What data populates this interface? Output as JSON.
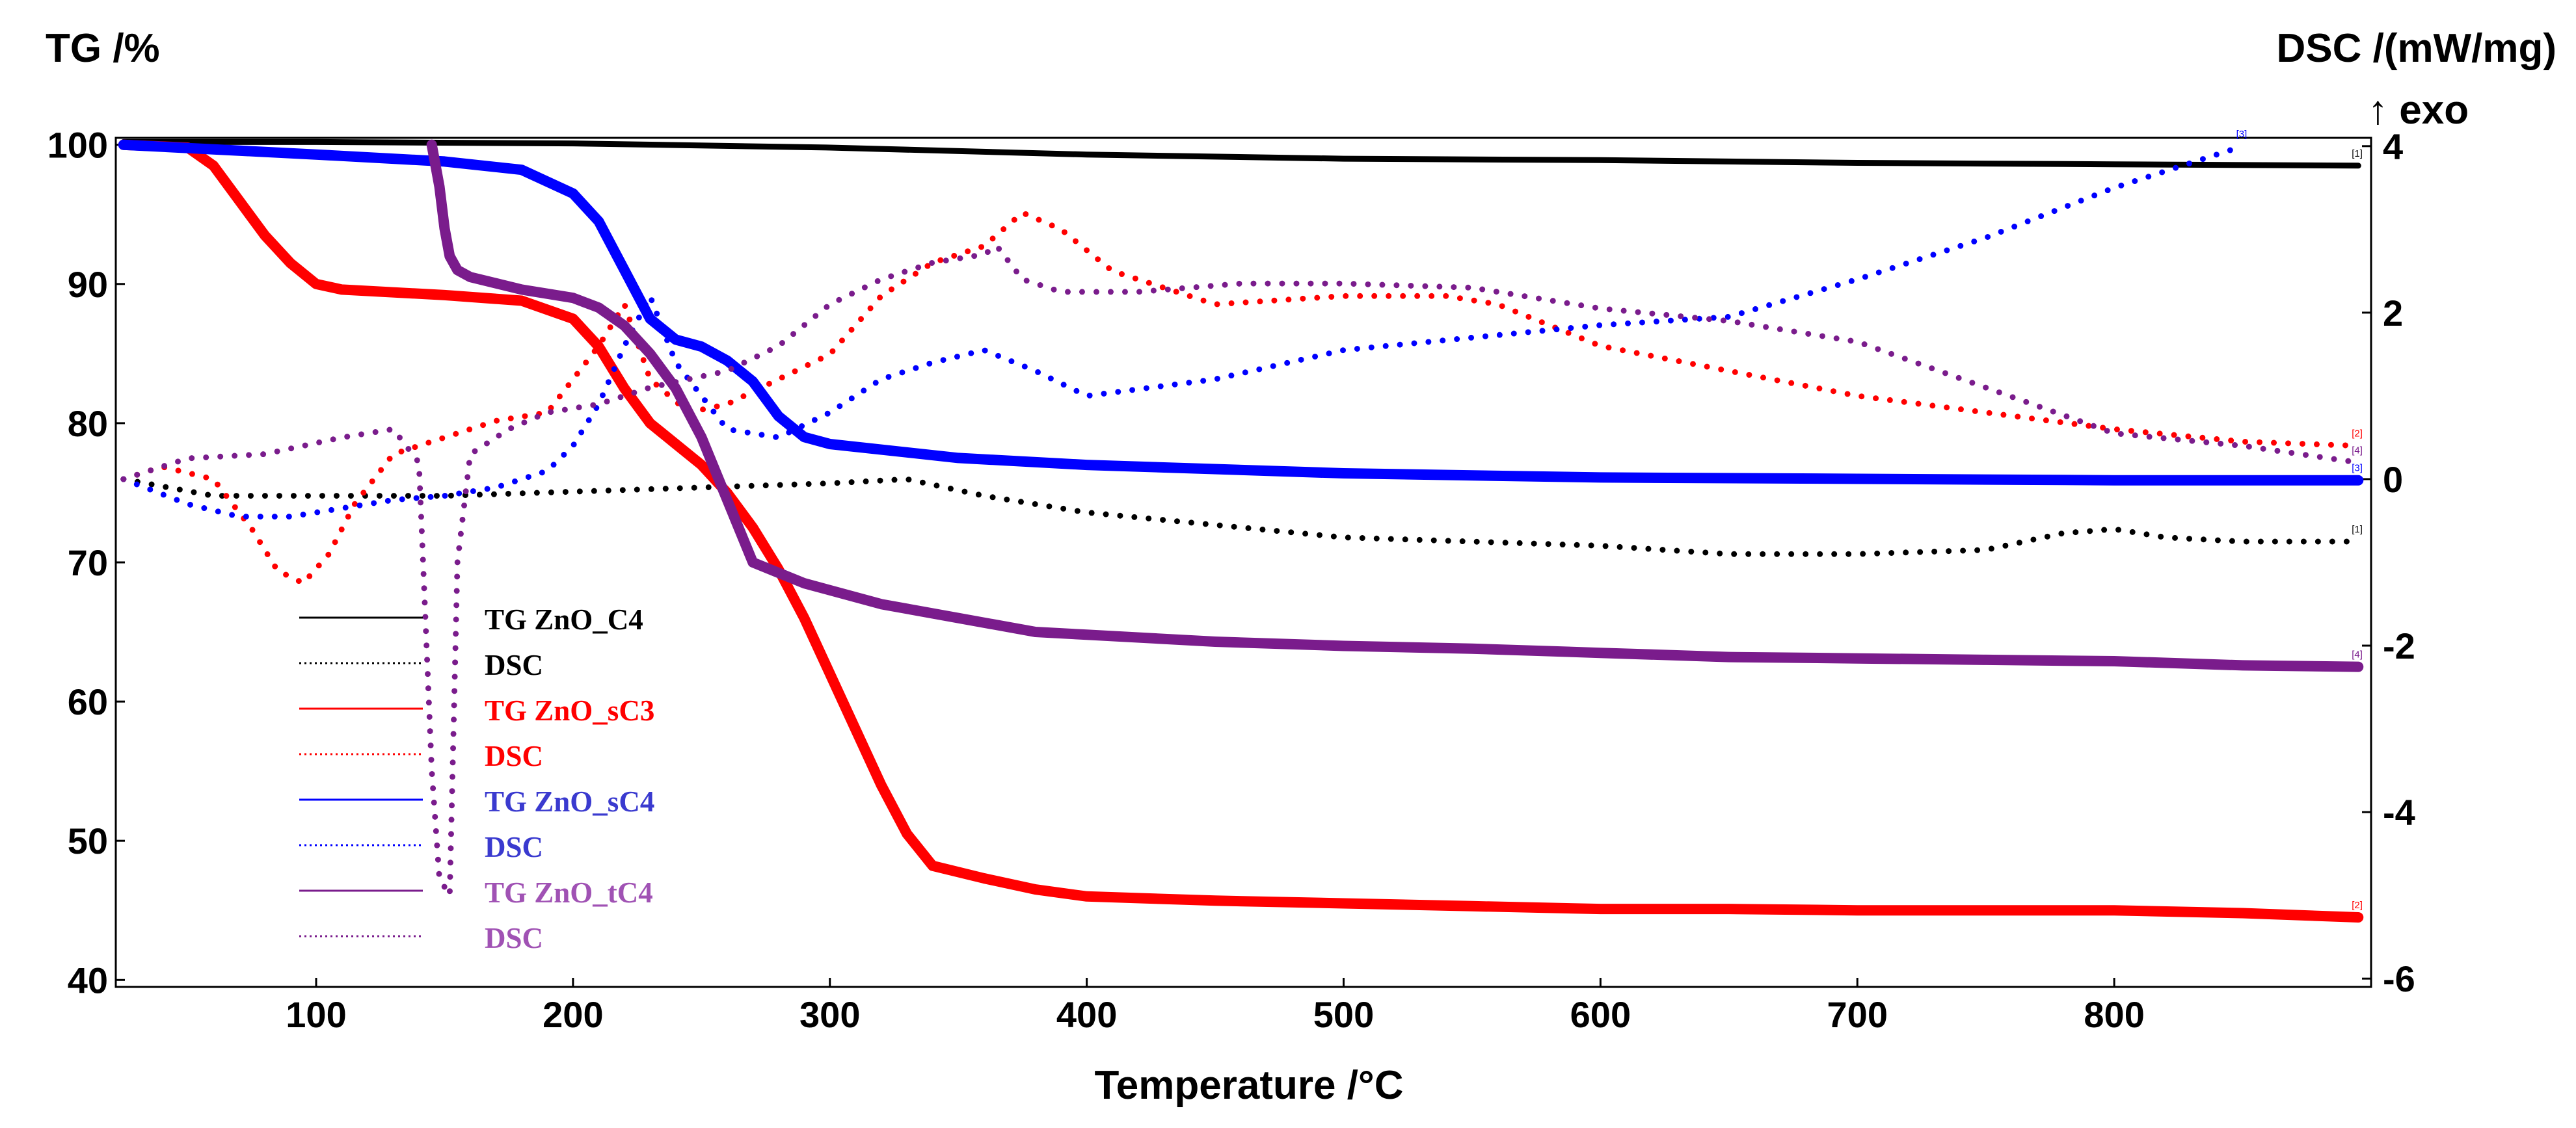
{
  "chart_data": {
    "type": "line",
    "xlabel": "Temperature /°C",
    "ylabel_left": "TG /%",
    "ylabel_right": "DSC /(mW/mg)",
    "right_axis_note": "↑ exo",
    "xlim": [
      22,
      900
    ],
    "ylim_left": [
      39.5,
      100.5
    ],
    "ylim_right": [
      -6.1,
      4.1
    ],
    "x_ticks": [
      100,
      200,
      300,
      400,
      500,
      600,
      700,
      800
    ],
    "y_ticks_left": [
      40,
      50,
      60,
      70,
      80,
      90,
      100
    ],
    "y_ticks_right": [
      -6,
      -4,
      -2,
      0,
      2,
      4
    ],
    "grid": false,
    "legend_position": "lower-left",
    "colors": {
      "C4": "#000000",
      "sC3": "#ff0000",
      "sC4": "#0000ff",
      "tC4": "#7a1c8c",
      "legend_tC4_text": "#a052b4",
      "legend_sC4_text": "#3a3acf"
    },
    "series": [
      {
        "name": "TG ZnO_C4",
        "axis": "left",
        "style": "solid",
        "color_key": "C4",
        "tag": "[1]",
        "x": [
          25,
          100,
          200,
          300,
          400,
          500,
          600,
          700,
          800,
          895
        ],
        "y": [
          100.2,
          100.2,
          100.1,
          99.8,
          99.3,
          99.0,
          98.9,
          98.7,
          98.6,
          98.5
        ]
      },
      {
        "name": "DSC",
        "axis": "right",
        "style": "dotted",
        "color_key": "C4",
        "tag": "[1]",
        "x": [
          25,
          60,
          100,
          150,
          200,
          250,
          300,
          330,
          360,
          400,
          450,
          500,
          550,
          600,
          650,
          700,
          750,
          780,
          800,
          820,
          850,
          880,
          895
        ],
        "y": [
          0.0,
          -0.2,
          -0.2,
          -0.2,
          -0.15,
          -0.1,
          -0.05,
          0.0,
          -0.2,
          -0.4,
          -0.55,
          -0.7,
          -0.75,
          -0.8,
          -0.9,
          -0.9,
          -0.85,
          -0.65,
          -0.6,
          -0.7,
          -0.75,
          -0.75,
          -0.75
        ]
      },
      {
        "name": "TG ZnO_sC3",
        "axis": "left",
        "style": "solid",
        "color_key": "sC3",
        "tag": "[2]",
        "x": [
          25,
          50,
          60,
          70,
          80,
          90,
          100,
          110,
          150,
          180,
          200,
          210,
          220,
          230,
          240,
          250,
          260,
          270,
          280,
          290,
          300,
          310,
          320,
          330,
          340,
          360,
          380,
          400,
          450,
          500,
          550,
          600,
          650,
          700,
          750,
          800,
          850,
          895
        ],
        "y": [
          100.0,
          99.8,
          98.5,
          96.0,
          93.5,
          91.5,
          90.0,
          89.6,
          89.2,
          88.8,
          87.5,
          85.5,
          82.5,
          80.0,
          78.5,
          77.0,
          75.0,
          72.5,
          69.5,
          66.0,
          62.0,
          58.0,
          54.0,
          50.5,
          48.2,
          47.3,
          46.5,
          46.0,
          45.7,
          45.5,
          45.3,
          45.1,
          45.1,
          45.0,
          45.0,
          45.0,
          44.8,
          44.5
        ]
      },
      {
        "name": "DSC",
        "axis": "right",
        "style": "dotted",
        "color_key": "sC3",
        "tag": "[2]",
        "x": [
          25,
          40,
          60,
          75,
          85,
          95,
          105,
          115,
          130,
          150,
          170,
          190,
          210,
          220,
          230,
          245,
          260,
          280,
          300,
          320,
          340,
          360,
          375,
          390,
          410,
          450,
          500,
          540,
          560,
          600,
          650,
          700,
          750,
          800,
          850,
          895
        ],
        "y": [
          0.0,
          0.15,
          0.0,
          -0.6,
          -1.1,
          -1.25,
          -0.9,
          -0.3,
          0.3,
          0.5,
          0.7,
          0.8,
          1.6,
          2.1,
          1.2,
          0.8,
          0.9,
          1.2,
          1.5,
          2.2,
          2.6,
          2.8,
          3.2,
          3.0,
          2.5,
          2.1,
          2.2,
          2.2,
          2.1,
          1.6,
          1.3,
          1.0,
          0.8,
          0.6,
          0.45,
          0.4
        ]
      },
      {
        "name": "TG ZnO_sC4",
        "axis": "left",
        "style": "solid",
        "color_key": "sC4",
        "tag": "[3]",
        "x": [
          25,
          100,
          150,
          180,
          200,
          210,
          220,
          230,
          240,
          250,
          260,
          270,
          280,
          290,
          300,
          350,
          400,
          500,
          600,
          700,
          800,
          895
        ],
        "y": [
          100.0,
          99.3,
          98.8,
          98.2,
          96.5,
          94.5,
          91.0,
          87.5,
          86.0,
          85.5,
          84.5,
          83.0,
          80.5,
          79.0,
          78.5,
          77.5,
          77.0,
          76.4,
          76.1,
          76.0,
          75.9,
          75.9
        ]
      },
      {
        "name": "DSC",
        "axis": "right",
        "style": "dotted",
        "color_key": "sC4",
        "tag": "[3]",
        "x": [
          25,
          50,
          70,
          90,
          110,
          130,
          150,
          170,
          190,
          200,
          210,
          220,
          230,
          240,
          260,
          280,
          300,
          320,
          340,
          360,
          380,
          400,
          450,
          500,
          550,
          600,
          650,
          700,
          750,
          800,
          850
        ],
        "y": [
          0.0,
          -0.3,
          -0.45,
          -0.45,
          -0.35,
          -0.25,
          -0.2,
          -0.1,
          0.1,
          0.4,
          0.9,
          1.6,
          2.2,
          1.4,
          0.6,
          0.5,
          0.8,
          1.2,
          1.4,
          1.55,
          1.3,
          1.0,
          1.2,
          1.55,
          1.7,
          1.85,
          1.95,
          2.4,
          2.9,
          3.5,
          4.0
        ]
      },
      {
        "name": "TG ZnO_tC4",
        "axis": "left",
        "style": "solid",
        "color_key": "tC4",
        "tag": "[4]",
        "x": [
          145,
          148,
          150,
          152,
          155,
          160,
          180,
          200,
          210,
          220,
          230,
          240,
          250,
          260,
          270,
          290,
          320,
          350,
          380,
          400,
          450,
          500,
          550,
          600,
          650,
          700,
          750,
          800,
          850,
          895
        ],
        "y": [
          100.0,
          97.0,
          94.0,
          92.0,
          91.0,
          90.5,
          89.6,
          89.0,
          88.3,
          87.0,
          85.0,
          82.5,
          79.0,
          74.5,
          70.0,
          68.5,
          67.0,
          66.0,
          65.0,
          64.8,
          64.3,
          64.0,
          63.8,
          63.5,
          63.2,
          63.1,
          63.0,
          62.9,
          62.6,
          62.5
        ]
      },
      {
        "name": "DSC",
        "axis": "right",
        "style": "dotted",
        "color_key": "tC4",
        "tag": "[4]",
        "x": [
          25,
          50,
          80,
          110,
          130,
          140,
          145,
          148,
          152,
          155,
          160,
          175,
          190,
          210,
          230,
          260,
          280,
          300,
          320,
          340,
          360,
          365,
          375,
          390,
          420,
          460,
          500,
          550,
          600,
          650,
          700,
          750,
          800,
          850,
          895
        ],
        "y": [
          0.0,
          0.25,
          0.3,
          0.5,
          0.6,
          0.2,
          -3.5,
          -4.8,
          -5.0,
          -1.0,
          0.3,
          0.6,
          0.8,
          0.9,
          1.1,
          1.3,
          1.6,
          2.1,
          2.4,
          2.6,
          2.7,
          2.8,
          2.4,
          2.25,
          2.25,
          2.35,
          2.35,
          2.3,
          2.05,
          1.9,
          1.65,
          1.1,
          0.55,
          0.4,
          0.2
        ]
      }
    ],
    "legend": [
      {
        "label": "TG ZnO_C4",
        "style": "solid",
        "color_key": "C4",
        "text_color_key": "C4"
      },
      {
        "label": "DSC",
        "style": "dotted",
        "color_key": "C4",
        "text_color_key": "C4"
      },
      {
        "label": "TG ZnO_sC3",
        "style": "solid",
        "color_key": "sC3",
        "text_color_key": "sC3"
      },
      {
        "label": "DSC",
        "style": "dotted",
        "color_key": "sC3",
        "text_color_key": "sC3"
      },
      {
        "label": "TG ZnO_sC4",
        "style": "solid",
        "color_key": "sC4",
        "text_color_key": "legend_sC4_text"
      },
      {
        "label": "DSC",
        "style": "dotted",
        "color_key": "sC4",
        "text_color_key": "legend_sC4_text"
      },
      {
        "label": "TG ZnO_tC4",
        "style": "solid",
        "color_key": "tC4",
        "text_color_key": "legend_tC4_text"
      },
      {
        "label": "DSC",
        "style": "dotted",
        "color_key": "tC4",
        "text_color_key": "legend_tC4_text"
      }
    ]
  }
}
